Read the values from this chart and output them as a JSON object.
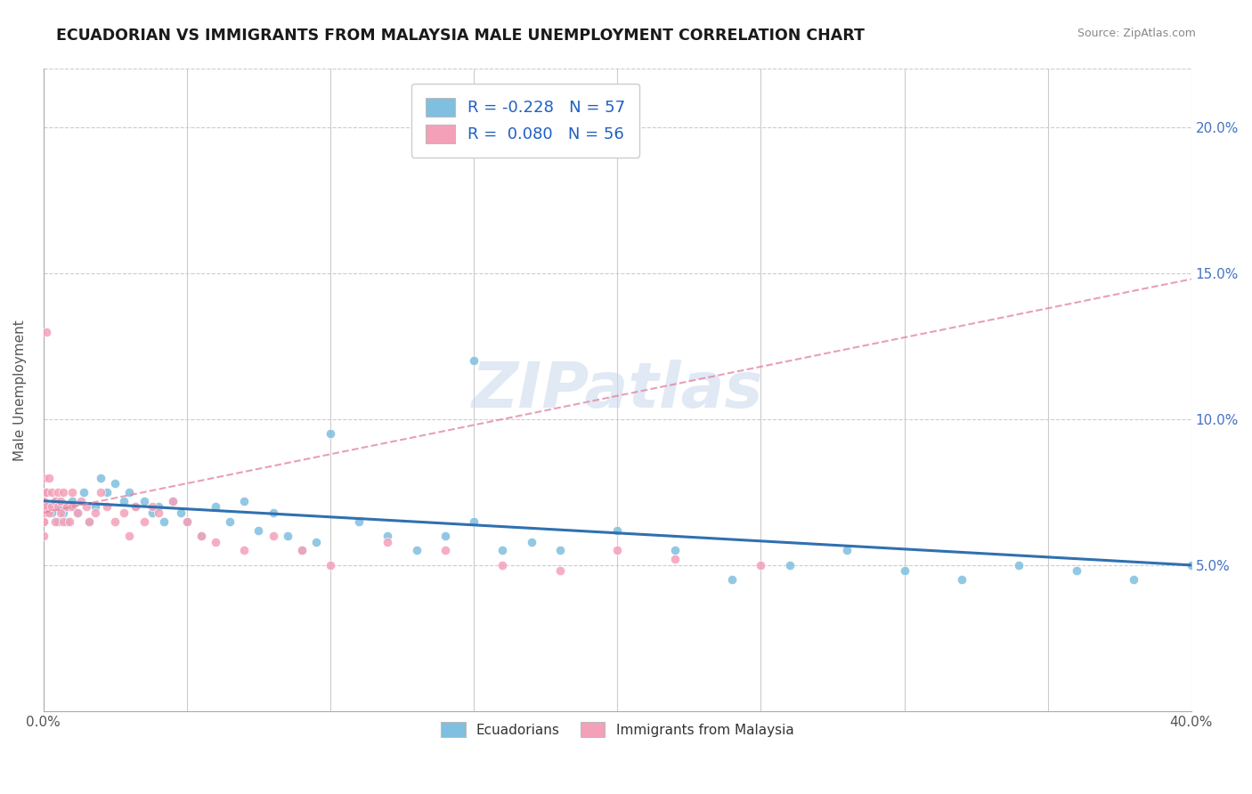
{
  "title": "ECUADORIAN VS IMMIGRANTS FROM MALAYSIA MALE UNEMPLOYMENT CORRELATION CHART",
  "source": "Source: ZipAtlas.com",
  "ylabel": "Male Unemployment",
  "xlim": [
    0.0,
    0.4
  ],
  "ylim": [
    0.0,
    0.22
  ],
  "xtick_positions": [
    0.0,
    0.05,
    0.1,
    0.15,
    0.2,
    0.25,
    0.3,
    0.35,
    0.4
  ],
  "xtick_labels": [
    "0.0%",
    "",
    "",
    "",
    "",
    "",
    "",
    "",
    "40.0%"
  ],
  "ytick_positions": [
    0.05,
    0.1,
    0.15,
    0.2
  ],
  "ytick_labels": [
    "5.0%",
    "10.0%",
    "15.0%",
    "20.0%"
  ],
  "blue_color": "#7fbfdf",
  "pink_color": "#f4a0b8",
  "blue_line_color": "#3070b0",
  "pink_line_color": "#e080a0",
  "watermark": "ZIPatlas",
  "ecuadorians_x": [
    0.001,
    0.002,
    0.003,
    0.004,
    0.005,
    0.006,
    0.007,
    0.008,
    0.009,
    0.01,
    0.012,
    0.014,
    0.016,
    0.018,
    0.02,
    0.022,
    0.025,
    0.028,
    0.03,
    0.032,
    0.035,
    0.038,
    0.04,
    0.042,
    0.045,
    0.048,
    0.05,
    0.055,
    0.06,
    0.065,
    0.07,
    0.075,
    0.08,
    0.085,
    0.09,
    0.095,
    0.1,
    0.11,
    0.12,
    0.13,
    0.14,
    0.15,
    0.16,
    0.17,
    0.18,
    0.2,
    0.22,
    0.24,
    0.26,
    0.28,
    0.3,
    0.32,
    0.34,
    0.36,
    0.38,
    0.4,
    0.15
  ],
  "ecuadorians_y": [
    0.075,
    0.07,
    0.068,
    0.072,
    0.065,
    0.07,
    0.068,
    0.065,
    0.07,
    0.072,
    0.068,
    0.075,
    0.065,
    0.07,
    0.08,
    0.075,
    0.078,
    0.072,
    0.075,
    0.07,
    0.072,
    0.068,
    0.07,
    0.065,
    0.072,
    0.068,
    0.065,
    0.06,
    0.07,
    0.065,
    0.072,
    0.062,
    0.068,
    0.06,
    0.055,
    0.058,
    0.095,
    0.065,
    0.06,
    0.055,
    0.06,
    0.065,
    0.055,
    0.058,
    0.055,
    0.062,
    0.055,
    0.045,
    0.05,
    0.055,
    0.048,
    0.045,
    0.05,
    0.048,
    0.045,
    0.05,
    0.12
  ],
  "malaysia_x": [
    0.0,
    0.0,
    0.0,
    0.0,
    0.0,
    0.0,
    0.0,
    0.0,
    0.001,
    0.001,
    0.001,
    0.002,
    0.002,
    0.003,
    0.003,
    0.004,
    0.004,
    0.005,
    0.005,
    0.006,
    0.006,
    0.007,
    0.007,
    0.008,
    0.009,
    0.01,
    0.01,
    0.012,
    0.013,
    0.015,
    0.016,
    0.018,
    0.02,
    0.022,
    0.025,
    0.028,
    0.03,
    0.032,
    0.035,
    0.038,
    0.04,
    0.045,
    0.05,
    0.055,
    0.06,
    0.07,
    0.08,
    0.09,
    0.1,
    0.12,
    0.14,
    0.16,
    0.18,
    0.2,
    0.22,
    0.25
  ],
  "malaysia_y": [
    0.065,
    0.07,
    0.072,
    0.068,
    0.075,
    0.065,
    0.08,
    0.06,
    0.075,
    0.13,
    0.07,
    0.08,
    0.068,
    0.075,
    0.07,
    0.072,
    0.065,
    0.075,
    0.07,
    0.068,
    0.072,
    0.075,
    0.065,
    0.07,
    0.065,
    0.07,
    0.075,
    0.068,
    0.072,
    0.07,
    0.065,
    0.068,
    0.075,
    0.07,
    0.065,
    0.068,
    0.06,
    0.07,
    0.065,
    0.07,
    0.068,
    0.072,
    0.065,
    0.06,
    0.058,
    0.055,
    0.06,
    0.055,
    0.05,
    0.058,
    0.055,
    0.05,
    0.048,
    0.055,
    0.052,
    0.05
  ]
}
